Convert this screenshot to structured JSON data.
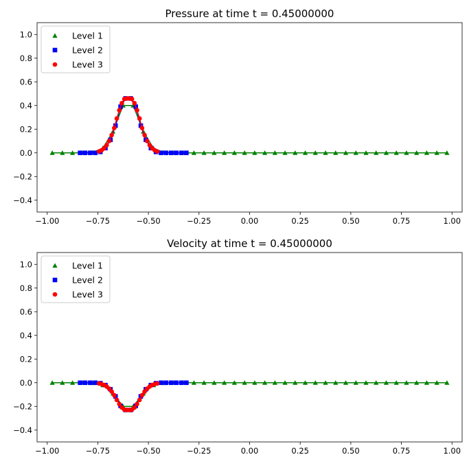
{
  "chart_data": [
    {
      "type": "line",
      "title": "Pressure at time t =     0.45000000",
      "xlim": [
        -1.05,
        1.05
      ],
      "ylim": [
        -0.5,
        1.1
      ],
      "xticks": [
        -1.0,
        -0.75,
        -0.5,
        -0.25,
        0.0,
        0.25,
        0.5,
        0.75,
        1.0
      ],
      "xtick_labels": [
        "−1.00",
        "−0.75",
        "−0.50",
        "−0.25",
        "0.00",
        "0.25",
        "0.50",
        "0.75",
        "1.00"
      ],
      "yticks": [
        -0.4,
        -0.2,
        0.0,
        0.2,
        0.4,
        0.6,
        0.8,
        1.0
      ],
      "ytick_labels": [
        "−0.4",
        "−0.2",
        "0.0",
        "0.2",
        "0.4",
        "0.6",
        "0.8",
        "1.0"
      ],
      "grid": false,
      "legend_position": "top-left",
      "series": [
        {
          "name": "Level 1",
          "marker": "triangle",
          "color": "#008000",
          "x": [
            -0.975,
            -0.925,
            -0.875,
            -0.825,
            -0.775,
            -0.725,
            -0.675,
            -0.625,
            -0.575,
            -0.525,
            -0.475,
            -0.425,
            -0.375,
            -0.325,
            -0.275,
            -0.225,
            -0.175,
            -0.125,
            -0.075,
            -0.025,
            0.025,
            0.075,
            0.125,
            0.175,
            0.225,
            0.275,
            0.325,
            0.375,
            0.425,
            0.475,
            0.525,
            0.575,
            0.625,
            0.675,
            0.725,
            0.775,
            0.825,
            0.875,
            0.925,
            0.975
          ],
          "y": [
            0,
            0,
            0,
            0,
            0.004,
            0.04,
            0.18,
            0.4,
            0.4,
            0.18,
            0.04,
            0.004,
            0,
            0,
            0,
            0,
            0,
            0,
            0,
            0,
            0,
            0,
            0,
            0,
            0,
            0,
            0,
            0,
            0,
            0,
            0,
            0,
            0,
            0,
            0,
            0,
            0,
            0,
            0,
            0
          ]
        },
        {
          "name": "Level 2",
          "marker": "square",
          "color": "#0000ff",
          "x": [
            -0.8375,
            -0.8125,
            -0.7875,
            -0.7625,
            -0.7375,
            -0.7125,
            -0.6875,
            -0.6625,
            -0.6375,
            -0.6125,
            -0.5875,
            -0.5625,
            -0.5375,
            -0.5125,
            -0.4875,
            -0.4625,
            -0.4375,
            -0.4125,
            -0.3875,
            -0.3625,
            -0.3375,
            -0.3125
          ],
          "y": [
            0,
            0,
            0,
            0,
            0.008,
            0.04,
            0.11,
            0.23,
            0.39,
            0.46,
            0.46,
            0.39,
            0.23,
            0.11,
            0.04,
            0.008,
            0,
            0,
            0,
            0,
            0,
            0
          ]
        },
        {
          "name": "Level 3",
          "marker": "circle",
          "color": "#ff0000",
          "x": [
            -0.74375,
            -0.73125,
            -0.71875,
            -0.70625,
            -0.69375,
            -0.68125,
            -0.66875,
            -0.65625,
            -0.64375,
            -0.63125,
            -0.61875,
            -0.60625,
            -0.59375,
            -0.58125,
            -0.56875,
            -0.55625,
            -0.54375,
            -0.53125,
            -0.51875,
            -0.50625,
            -0.49375,
            -0.48125,
            -0.46875,
            -0.45625
          ],
          "y": [
            0.012,
            0.022,
            0.038,
            0.065,
            0.1,
            0.15,
            0.21,
            0.29,
            0.36,
            0.42,
            0.455,
            0.46,
            0.46,
            0.455,
            0.42,
            0.36,
            0.29,
            0.21,
            0.15,
            0.1,
            0.065,
            0.038,
            0.022,
            0.012
          ]
        }
      ]
    },
    {
      "type": "line",
      "title": "Velocity at time t =     0.45000000",
      "xlim": [
        -1.05,
        1.05
      ],
      "ylim": [
        -0.5,
        1.1
      ],
      "xticks": [
        -1.0,
        -0.75,
        -0.5,
        -0.25,
        0.0,
        0.25,
        0.5,
        0.75,
        1.0
      ],
      "xtick_labels": [
        "−1.00",
        "−0.75",
        "−0.50",
        "−0.25",
        "0.00",
        "0.25",
        "0.50",
        "0.75",
        "1.00"
      ],
      "yticks": [
        -0.4,
        -0.2,
        0.0,
        0.2,
        0.4,
        0.6,
        0.8,
        1.0
      ],
      "ytick_labels": [
        "−0.4",
        "−0.2",
        "0.0",
        "0.2",
        "0.4",
        "0.6",
        "0.8",
        "1.0"
      ],
      "grid": false,
      "legend_position": "top-left",
      "series": [
        {
          "name": "Level 1",
          "marker": "triangle",
          "color": "#008000",
          "x": [
            -0.975,
            -0.925,
            -0.875,
            -0.825,
            -0.775,
            -0.725,
            -0.675,
            -0.625,
            -0.575,
            -0.525,
            -0.475,
            -0.425,
            -0.375,
            -0.325,
            -0.275,
            -0.225,
            -0.175,
            -0.125,
            -0.075,
            -0.025,
            0.025,
            0.075,
            0.125,
            0.175,
            0.225,
            0.275,
            0.325,
            0.375,
            0.425,
            0.475,
            0.525,
            0.575,
            0.625,
            0.675,
            0.725,
            0.775,
            0.825,
            0.875,
            0.925,
            0.975
          ],
          "y": [
            0,
            0,
            0,
            0,
            -0.002,
            -0.02,
            -0.09,
            -0.2,
            -0.2,
            -0.09,
            -0.02,
            -0.002,
            0,
            0,
            0,
            0,
            0,
            0,
            0,
            0,
            0,
            0,
            0,
            0,
            0,
            0,
            0,
            0,
            0,
            0,
            0,
            0,
            0,
            0,
            0,
            0,
            0,
            0,
            0,
            0
          ]
        },
        {
          "name": "Level 2",
          "marker": "square",
          "color": "#0000ff",
          "x": [
            -0.8375,
            -0.8125,
            -0.7875,
            -0.7625,
            -0.7375,
            -0.7125,
            -0.6875,
            -0.6625,
            -0.6375,
            -0.6125,
            -0.5875,
            -0.5625,
            -0.5375,
            -0.5125,
            -0.4875,
            -0.4625,
            -0.4375,
            -0.4125,
            -0.3875,
            -0.3625,
            -0.3375,
            -0.3125
          ],
          "y": [
            0,
            0,
            0,
            0,
            -0.004,
            -0.02,
            -0.055,
            -0.115,
            -0.195,
            -0.23,
            -0.23,
            -0.195,
            -0.115,
            -0.055,
            -0.02,
            -0.004,
            0,
            0,
            0,
            0,
            0,
            0
          ]
        },
        {
          "name": "Level 3",
          "marker": "circle",
          "color": "#ff0000",
          "x": [
            -0.74375,
            -0.73125,
            -0.71875,
            -0.70625,
            -0.69375,
            -0.68125,
            -0.66875,
            -0.65625,
            -0.64375,
            -0.63125,
            -0.61875,
            -0.60625,
            -0.59375,
            -0.58125,
            -0.56875,
            -0.55625,
            -0.54375,
            -0.53125,
            -0.51875,
            -0.50625,
            -0.49375,
            -0.48125,
            -0.46875,
            -0.45625
          ],
          "y": [
            -0.006,
            -0.011,
            -0.019,
            -0.032,
            -0.05,
            -0.075,
            -0.105,
            -0.145,
            -0.18,
            -0.21,
            -0.228,
            -0.23,
            -0.23,
            -0.228,
            -0.21,
            -0.18,
            -0.145,
            -0.105,
            -0.075,
            -0.05,
            -0.032,
            -0.019,
            -0.011,
            -0.006
          ]
        }
      ]
    }
  ]
}
